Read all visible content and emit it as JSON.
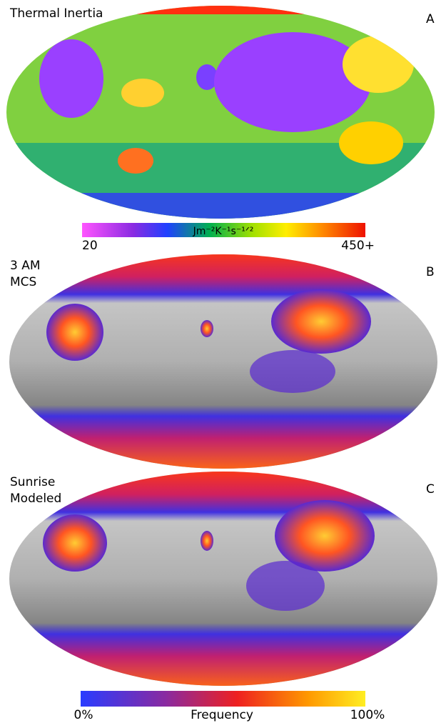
{
  "panels": [
    {
      "lines": [
        "Thermal Inertia"
      ],
      "letter": "A"
    },
    {
      "lines": [
        "3 AM",
        "MCS"
      ],
      "letter": "B"
    },
    {
      "lines": [
        "Sunrise",
        "Modeled"
      ],
      "letter": "C"
    }
  ],
  "colorbars": [
    {
      "min_label": "20",
      "max_label": "450+",
      "center_label": "Jm⁻²K⁻¹s⁻¹ᐟ²"
    },
    {
      "min_label": "0%",
      "max_label": "100%",
      "center_label": "Frequency"
    }
  ]
}
